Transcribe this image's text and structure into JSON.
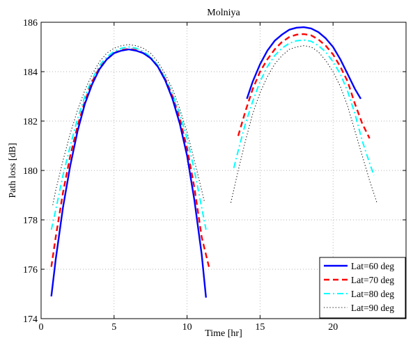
{
  "chart_data": {
    "type": "line",
    "title": "Molniya",
    "xlabel": "Time [hr]",
    "ylabel": "Path loss [dB]",
    "xlim": [
      0,
      25
    ],
    "ylim": [
      174,
      186
    ],
    "xticks": [
      0,
      5,
      10,
      15,
      20
    ],
    "yticks": [
      174,
      176,
      178,
      180,
      182,
      184,
      186
    ],
    "grid": true,
    "legend_position": "bottom-right",
    "series": [
      {
        "name": "Lat=60 deg",
        "color": "#0000ff",
        "style": "solid",
        "segments": [
          [
            [
              0.7,
              174.9
            ],
            [
              1.0,
              176.4
            ],
            [
              1.5,
              178.5
            ],
            [
              2.0,
              180.2
            ],
            [
              2.5,
              181.6
            ],
            [
              3.0,
              182.7
            ],
            [
              3.5,
              183.5
            ],
            [
              4.0,
              184.1
            ],
            [
              4.5,
              184.5
            ],
            [
              5.0,
              184.75
            ],
            [
              5.5,
              184.85
            ],
            [
              6.0,
              184.9
            ],
            [
              6.5,
              184.85
            ],
            [
              7.0,
              184.75
            ],
            [
              7.5,
              184.55
            ],
            [
              8.0,
              184.2
            ],
            [
              8.5,
              183.65
            ],
            [
              9.0,
              182.9
            ],
            [
              9.5,
              181.9
            ],
            [
              10.0,
              180.6
            ],
            [
              10.5,
              178.8
            ],
            [
              11.0,
              176.6
            ],
            [
              11.3,
              174.85
            ]
          ],
          [
            [
              14.1,
              182.9
            ],
            [
              14.5,
              183.6
            ],
            [
              15.0,
              184.3
            ],
            [
              15.5,
              184.85
            ],
            [
              16.0,
              185.25
            ],
            [
              16.5,
              185.5
            ],
            [
              17.0,
              185.7
            ],
            [
              17.5,
              185.78
            ],
            [
              18.0,
              185.8
            ],
            [
              18.5,
              185.75
            ],
            [
              19.0,
              185.6
            ],
            [
              19.5,
              185.35
            ],
            [
              20.0,
              185.0
            ],
            [
              20.5,
              184.5
            ],
            [
              21.0,
              183.9
            ],
            [
              21.5,
              183.3
            ],
            [
              21.9,
              182.9
            ]
          ]
        ]
      },
      {
        "name": "Lat=70 deg",
        "color": "#ff0000",
        "style": "dashed",
        "segments": [
          [
            [
              0.7,
              176.1
            ],
            [
              1.0,
              177.3
            ],
            [
              1.5,
              179.1
            ],
            [
              2.0,
              180.6
            ],
            [
              2.5,
              181.8
            ],
            [
              3.0,
              182.8
            ],
            [
              3.5,
              183.6
            ],
            [
              4.0,
              184.15
            ],
            [
              4.5,
              184.5
            ],
            [
              5.0,
              184.75
            ],
            [
              5.5,
              184.88
            ],
            [
              6.0,
              184.92
            ],
            [
              6.5,
              184.88
            ],
            [
              7.0,
              184.75
            ],
            [
              7.5,
              184.55
            ],
            [
              8.0,
              184.2
            ],
            [
              8.5,
              183.7
            ],
            [
              9.0,
              183.0
            ],
            [
              9.5,
              182.1
            ],
            [
              10.0,
              180.9
            ],
            [
              10.5,
              179.3
            ],
            [
              11.0,
              177.3
            ],
            [
              11.5,
              176.1
            ]
          ],
          [
            [
              13.5,
              181.4
            ],
            [
              14.0,
              182.4
            ],
            [
              14.5,
              183.3
            ],
            [
              15.0,
              184.0
            ],
            [
              15.5,
              184.5
            ],
            [
              16.0,
              184.9
            ],
            [
              16.5,
              185.2
            ],
            [
              17.0,
              185.4
            ],
            [
              17.5,
              185.5
            ],
            [
              18.0,
              185.52
            ],
            [
              18.5,
              185.47
            ],
            [
              19.0,
              185.3
            ],
            [
              19.5,
              185.05
            ],
            [
              20.0,
              184.7
            ],
            [
              20.5,
              184.2
            ],
            [
              21.0,
              183.6
            ],
            [
              21.5,
              182.7
            ],
            [
              22.0,
              181.9
            ],
            [
              22.5,
              181.3
            ]
          ]
        ]
      },
      {
        "name": "Lat=80 deg",
        "color": "#00ffff",
        "style": "dashdot",
        "segments": [
          [
            [
              0.7,
              177.6
            ],
            [
              1.0,
              178.4
            ],
            [
              1.5,
              179.8
            ],
            [
              2.0,
              181.0
            ],
            [
              2.5,
              182.1
            ],
            [
              3.0,
              183.0
            ],
            [
              3.5,
              183.7
            ],
            [
              4.0,
              184.25
            ],
            [
              4.5,
              184.6
            ],
            [
              5.0,
              184.82
            ],
            [
              5.5,
              184.95
            ],
            [
              6.0,
              185.0
            ],
            [
              6.5,
              184.95
            ],
            [
              7.0,
              184.82
            ],
            [
              7.5,
              184.6
            ],
            [
              8.0,
              184.25
            ],
            [
              8.5,
              183.75
            ],
            [
              9.0,
              183.1
            ],
            [
              9.5,
              182.3
            ],
            [
              10.0,
              181.3
            ],
            [
              10.5,
              180.0
            ],
            [
              11.0,
              178.5
            ],
            [
              11.3,
              177.6
            ]
          ],
          [
            [
              13.2,
              180.1
            ],
            [
              13.5,
              180.8
            ],
            [
              14.0,
              181.9
            ],
            [
              14.5,
              182.8
            ],
            [
              15.0,
              183.6
            ],
            [
              15.5,
              184.2
            ],
            [
              16.0,
              184.65
            ],
            [
              16.5,
              184.95
            ],
            [
              17.0,
              185.15
            ],
            [
              17.5,
              185.25
            ],
            [
              18.0,
              185.28
            ],
            [
              18.5,
              185.23
            ],
            [
              19.0,
              185.05
            ],
            [
              19.5,
              184.8
            ],
            [
              20.0,
              184.4
            ],
            [
              20.5,
              183.9
            ],
            [
              21.0,
              183.2
            ],
            [
              21.5,
              182.3
            ],
            [
              22.0,
              181.2
            ],
            [
              22.5,
              180.3
            ],
            [
              22.8,
              179.8
            ]
          ]
        ]
      },
      {
        "name": "Lat=90 deg",
        "color": "#000000",
        "style": "dotted",
        "segments": [
          [
            [
              0.8,
              178.6
            ],
            [
              1.0,
              179.2
            ],
            [
              1.5,
              180.4
            ],
            [
              2.0,
              181.5
            ],
            [
              2.5,
              182.45
            ],
            [
              3.0,
              183.25
            ],
            [
              3.5,
              183.9
            ],
            [
              4.0,
              184.4
            ],
            [
              4.5,
              184.75
            ],
            [
              5.0,
              184.95
            ],
            [
              5.5,
              185.05
            ],
            [
              6.0,
              185.1
            ],
            [
              6.5,
              185.05
            ],
            [
              7.0,
              184.95
            ],
            [
              7.5,
              184.75
            ],
            [
              8.0,
              184.4
            ],
            [
              8.5,
              183.9
            ],
            [
              9.0,
              183.3
            ],
            [
              9.5,
              182.5
            ],
            [
              10.0,
              181.55
            ],
            [
              10.5,
              180.4
            ],
            [
              11.0,
              179.2
            ],
            [
              11.2,
              178.7
            ]
          ],
          [
            [
              13.0,
              178.7
            ],
            [
              13.5,
              180.0
            ],
            [
              14.0,
              181.2
            ],
            [
              14.5,
              182.3
            ],
            [
              15.0,
              183.15
            ],
            [
              15.5,
              183.8
            ],
            [
              16.0,
              184.3
            ],
            [
              16.5,
              184.65
            ],
            [
              17.0,
              184.9
            ],
            [
              17.5,
              185.0
            ],
            [
              18.0,
              185.05
            ],
            [
              18.5,
              185.0
            ],
            [
              19.0,
              184.8
            ],
            [
              19.5,
              184.45
            ],
            [
              20.0,
              184.0
            ],
            [
              20.5,
              183.4
            ],
            [
              21.0,
              182.6
            ],
            [
              21.5,
              181.6
            ],
            [
              22.0,
              180.6
            ],
            [
              22.5,
              179.6
            ],
            [
              23.0,
              178.7
            ]
          ]
        ]
      }
    ]
  }
}
